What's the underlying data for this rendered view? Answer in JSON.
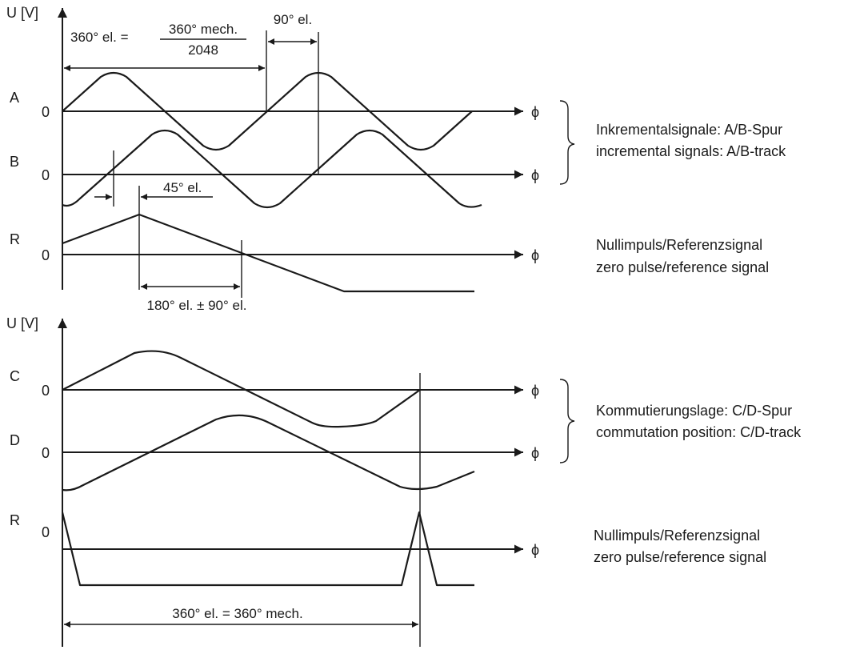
{
  "axis_label": "U [V]",
  "phi": "ϕ",
  "zero": "0",
  "top": {
    "formula_lhs": "360° el. = ",
    "formula_num": "360° mech.",
    "formula_den": "2048",
    "ann_90": "90° el.",
    "ann_45": "45° el.",
    "ann_180": "180° el. ± 90° el.",
    "signals": {
      "a": "A",
      "b": "B",
      "r": "R"
    },
    "incremental_de": "Inkrementalsignale: A/B-Spur",
    "incremental_en": "incremental signals: A/B-track",
    "zero_de": "Nullimpuls/Referenzsignal",
    "zero_en": "zero pulse/reference signal"
  },
  "bottom": {
    "signals": {
      "c": "C",
      "d": "D",
      "r": "R"
    },
    "commutation_de": "Kommutierungslage: C/D-Spur",
    "commutation_en": "commutation position: C/D-track",
    "zero_de": "Nullimpuls/Referenzsignal",
    "zero_en": "zero pulse/reference signal",
    "ann_360": "360° el. = 360° mech."
  },
  "colors": {
    "ink": "#1a1a1a",
    "background": "#ffffff"
  }
}
